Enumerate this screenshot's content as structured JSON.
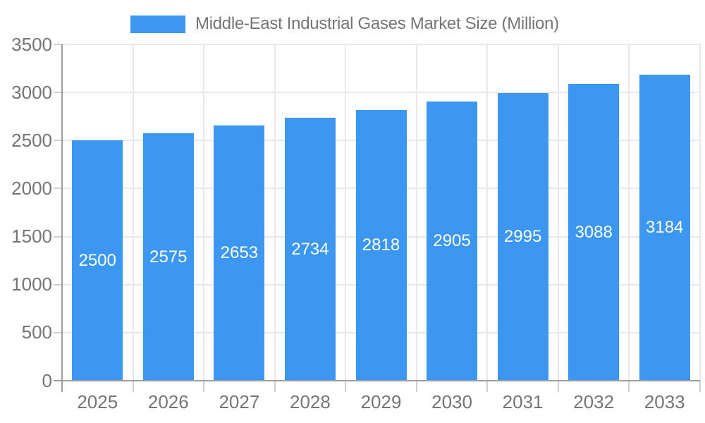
{
  "chart_data": {
    "type": "bar",
    "title": "Middle-East Industrial Gases Market Size (Million)",
    "categories": [
      "2025",
      "2026",
      "2027",
      "2028",
      "2029",
      "2030",
      "2031",
      "2032",
      "2033"
    ],
    "values": [
      2500,
      2575,
      2653,
      2734,
      2818,
      2905,
      2995,
      3088,
      3184
    ],
    "xlabel": "",
    "ylabel": "",
    "ylim": [
      0,
      3500
    ],
    "y_ticks": [
      0,
      500,
      1000,
      1500,
      2000,
      2500,
      3000,
      3500
    ],
    "grid": true,
    "legend_position": "top",
    "value_labels": "white text centered inside each bar",
    "colors": {
      "bar": "#3b97ef",
      "axis_text": "#757575",
      "value_label_text": "#ffffff",
      "gridline": "#e8e8e8",
      "axis_line": "#9e9e9e",
      "minor_tick": "#cfcfcf",
      "background": "#ffffff"
    }
  }
}
